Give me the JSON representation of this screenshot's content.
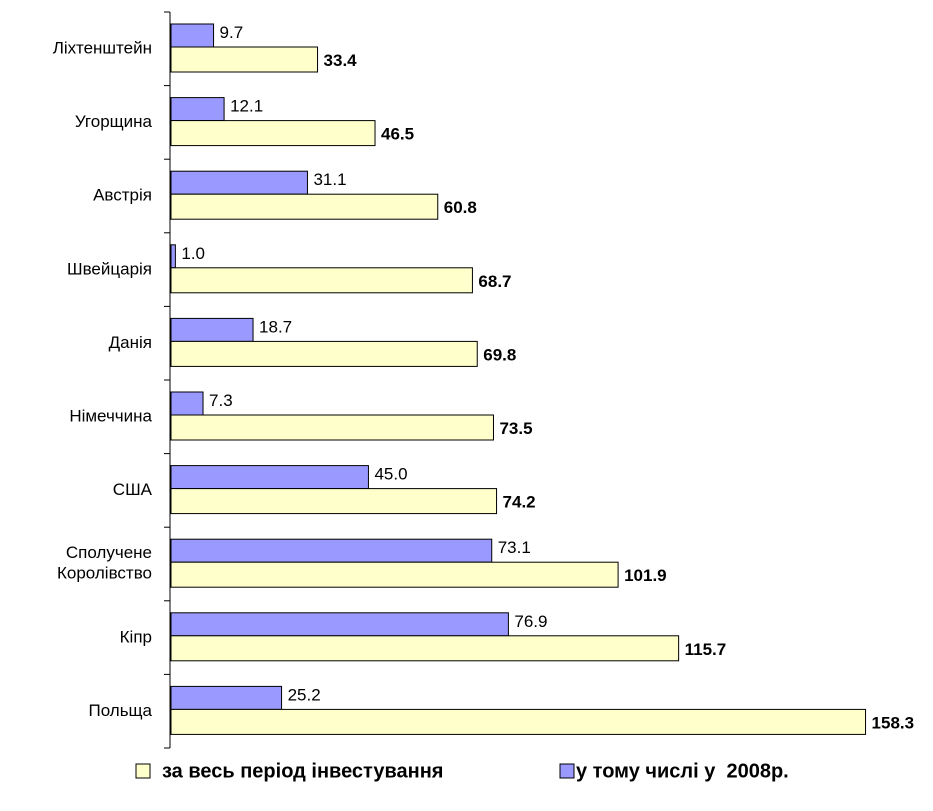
{
  "chart_data": {
    "type": "bar",
    "orientation": "horizontal",
    "categories": [
      "Ліхтенштейн",
      "Угорщина",
      "Австрія",
      "Швейцарія",
      "Данія",
      "Німеччина",
      "США",
      "Сполучене\nКоролівство",
      "Кіпр",
      "Польща"
    ],
    "series": [
      {
        "name": "у тому числі у  2008р.",
        "color": "#9999ff",
        "values": [
          9.7,
          12.1,
          31.1,
          1,
          18.7,
          7.3,
          45,
          73.1,
          76.9,
          25.2
        ],
        "value_labels": [
          "9.7",
          "12.1",
          "31.1",
          "1.0",
          "18.7",
          "7.3",
          "45.0",
          "73.1",
          "76.9",
          "25.2"
        ]
      },
      {
        "name": "за весь період інвестування",
        "color": "#ffffcc",
        "values": [
          33.4,
          46.5,
          60.8,
          68.7,
          69.8,
          73.5,
          74.2,
          101.9,
          115.7,
          158.3
        ],
        "value_labels": [
          "33.4",
          "46.5",
          "60.8",
          "68.7",
          "69.8",
          "73.5",
          "74.2",
          "101.9",
          "115.7",
          "158.3"
        ]
      }
    ],
    "xlim": [
      0,
      160
    ]
  }
}
